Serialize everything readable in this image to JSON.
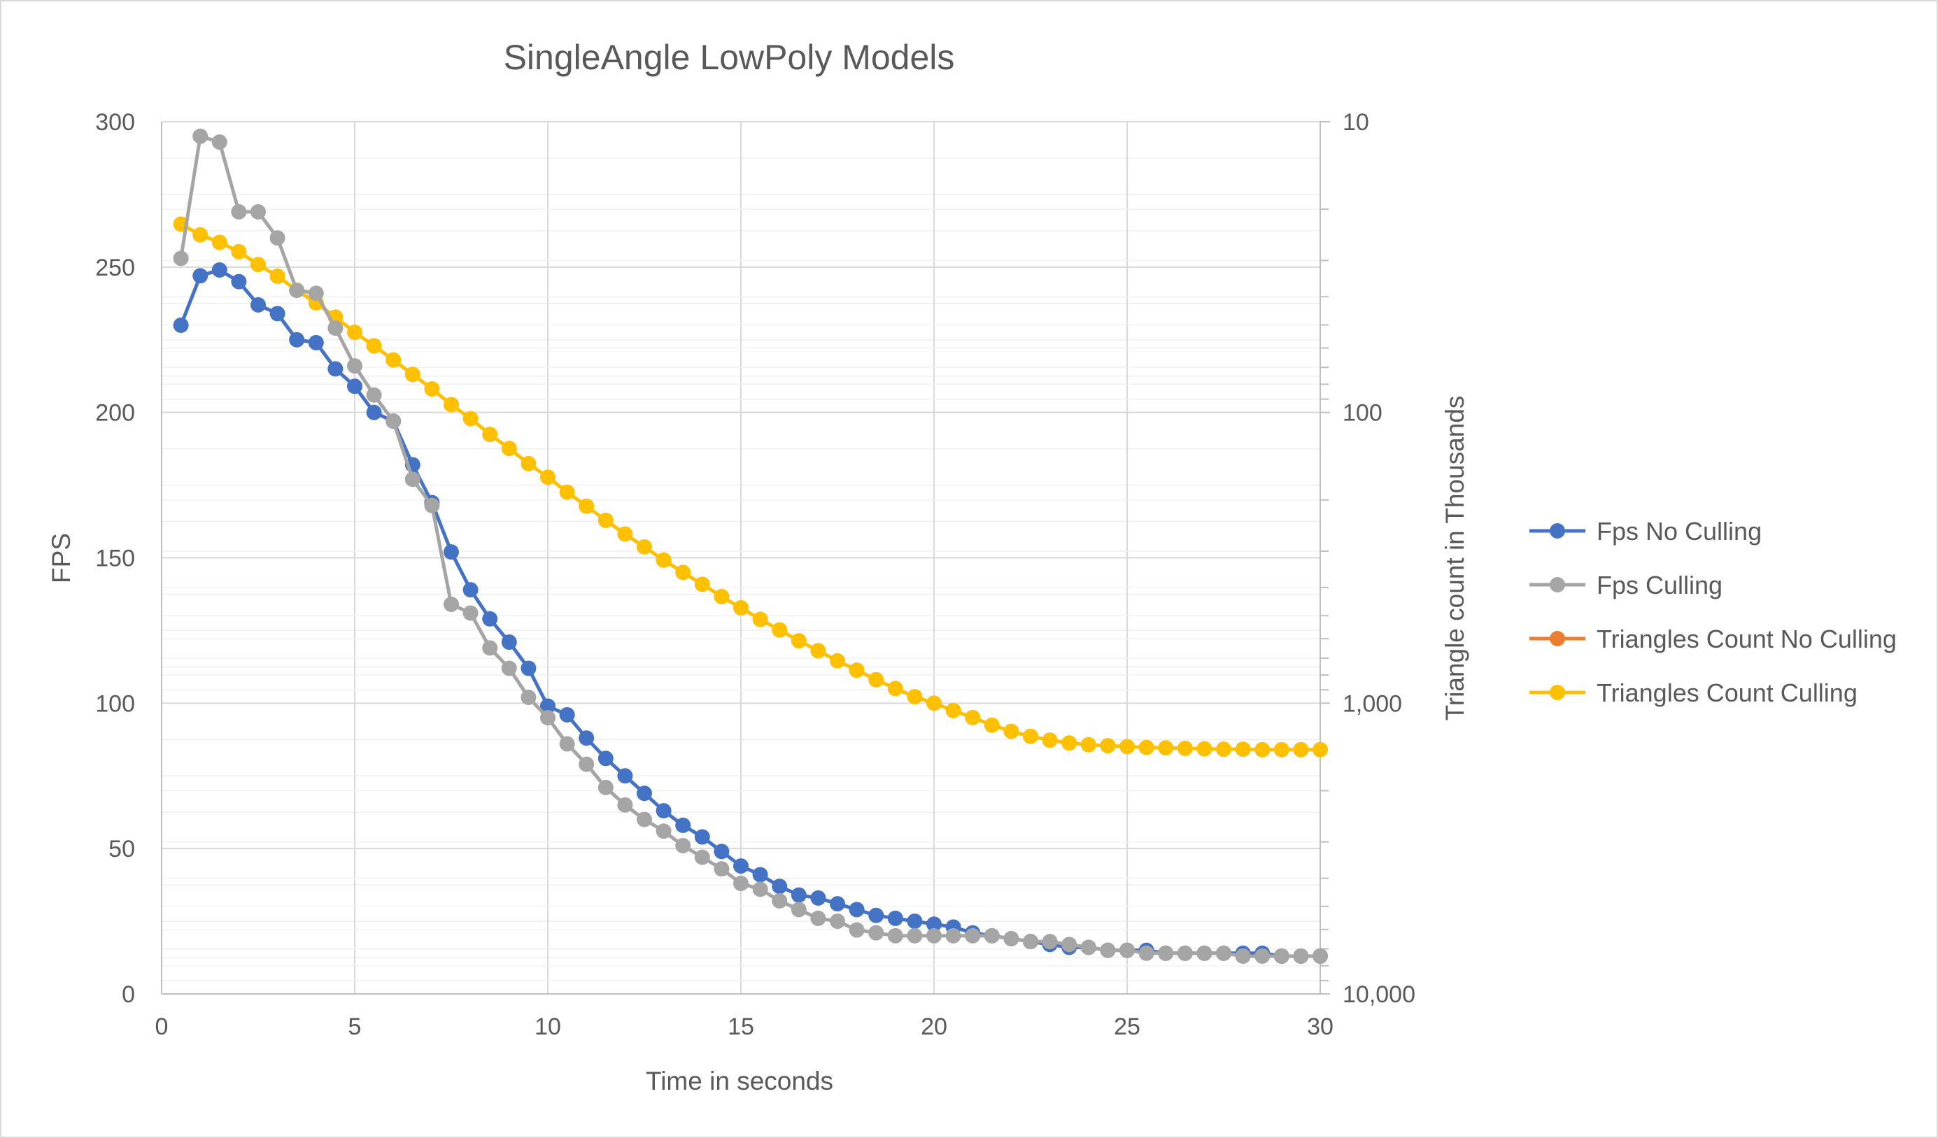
{
  "chart_data": {
    "type": "line",
    "title": "SingleAngle LowPoly Models",
    "xlabel": "Time in seconds",
    "ylabel": "FPS",
    "y2label": "Triangle count in Thousands",
    "xlim": [
      0,
      30
    ],
    "ylim": [
      0,
      300
    ],
    "y2lim": [
      10,
      10000
    ],
    "y2_scale": "log",
    "y2_inverted": true,
    "grid": true,
    "legend_position": "right",
    "x_ticks": [
      "0",
      "5",
      "10",
      "15",
      "20",
      "25",
      "30"
    ],
    "y_ticks": [
      "0",
      "50",
      "100",
      "150",
      "200",
      "250",
      "300"
    ],
    "y2_ticks": [
      "10",
      "100",
      "1,000",
      "10,000"
    ],
    "x": [
      0.5,
      1,
      1.5,
      2,
      2.5,
      3,
      3.5,
      4,
      4.5,
      5,
      5.5,
      6,
      6.5,
      7,
      7.5,
      8,
      8.5,
      9,
      9.5,
      10,
      10.5,
      11,
      11.5,
      12,
      12.5,
      13,
      13.5,
      14,
      14.5,
      15,
      15.5,
      16,
      16.5,
      17,
      17.5,
      18,
      18.5,
      19,
      19.5,
      20,
      20.5,
      21,
      21.5,
      22,
      22.5,
      23,
      23.5,
      24,
      24.5,
      25,
      25.5,
      26,
      26.5,
      27,
      27.5,
      28,
      28.5,
      29,
      29.5,
      30
    ],
    "series": [
      {
        "name": "Fps No Culling",
        "axis": "left",
        "color": "#4472C4",
        "values": [
          230,
          247,
          249,
          245,
          237,
          234,
          225,
          224,
          215,
          209,
          200,
          197,
          182,
          169,
          152,
          139,
          129,
          121,
          112,
          99,
          96,
          88,
          81,
          75,
          69,
          63,
          58,
          54,
          49,
          44,
          41,
          37,
          34,
          33,
          31,
          29,
          27,
          26,
          25,
          24,
          23,
          21,
          20,
          19,
          18,
          17,
          16,
          16,
          15,
          15,
          15,
          14,
          14,
          14,
          14,
          14,
          14,
          13,
          13,
          13
        ],
        "visible": true
      },
      {
        "name": "Fps Culling",
        "axis": "left",
        "color": "#A5A5A5",
        "values": [
          253,
          295,
          293,
          269,
          269,
          260,
          242,
          241,
          229,
          216,
          206,
          197,
          177,
          168,
          134,
          131,
          119,
          112,
          102,
          95,
          86,
          79,
          71,
          65,
          60,
          56,
          51,
          47,
          43,
          38,
          36,
          32,
          29,
          26,
          25,
          22,
          21,
          20,
          20,
          20,
          20,
          20,
          20,
          19,
          18,
          18,
          17,
          16,
          15,
          15,
          14,
          14,
          14,
          14,
          14,
          13,
          13,
          13,
          13,
          13
        ],
        "visible": true
      },
      {
        "name": "Triangles Count No Culling",
        "axis": "right",
        "color": "#ED7D31",
        "values": [
          22.5,
          24.5,
          26,
          28,
          31,
          34,
          38,
          42,
          47,
          53,
          59,
          66,
          74,
          83,
          94,
          105,
          119,
          133,
          150,
          167,
          188,
          210,
          235,
          262,
          290,
          322,
          355,
          390,
          430,
          470,
          515,
          560,
          610,
          660,
          715,
          770,
          830,
          890,
          950,
          1000,
          1060,
          1120,
          1190,
          1250,
          1300,
          1340,
          1370,
          1390,
          1400,
          1410,
          1420,
          1425,
          1430,
          1435,
          1440,
          1440,
          1445,
          1445,
          1445,
          1445
        ],
        "visible": false
      },
      {
        "name": "Triangles Count Culling",
        "axis": "right",
        "color": "#FFC000",
        "values": [
          22.5,
          24.5,
          26,
          28,
          31,
          34,
          38,
          42,
          47,
          53,
          59,
          66,
          74,
          83,
          94,
          105,
          119,
          133,
          150,
          167,
          188,
          210,
          235,
          262,
          290,
          322,
          355,
          390,
          430,
          470,
          515,
          560,
          610,
          660,
          715,
          770,
          830,
          890,
          950,
          1000,
          1060,
          1120,
          1190,
          1250,
          1300,
          1340,
          1370,
          1390,
          1400,
          1410,
          1420,
          1425,
          1430,
          1435,
          1440,
          1440,
          1445,
          1445,
          1445,
          1445
        ],
        "visible": true
      }
    ]
  }
}
